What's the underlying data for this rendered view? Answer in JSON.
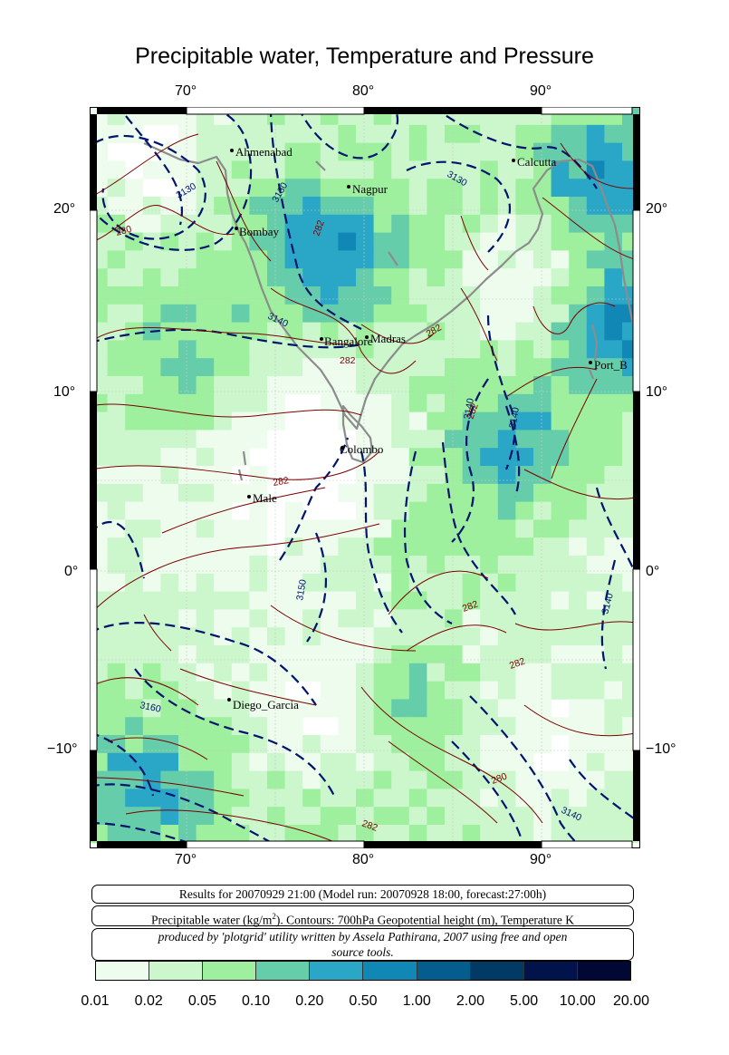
{
  "title": "Precipitable water, Temperature and Pressure",
  "lon_ticks": [
    "70°",
    "80°",
    "90°"
  ],
  "lat_ticks": [
    "20°",
    "10°",
    "0°",
    "−10°"
  ],
  "cities": [
    {
      "name": "Ahmenabad"
    },
    {
      "name": "Calcutta"
    },
    {
      "name": "Nagpur"
    },
    {
      "name": "Bombay"
    },
    {
      "name": "Madras"
    },
    {
      "name": "Bangalore"
    },
    {
      "name": "Port_B"
    },
    {
      "name": "Colombo"
    },
    {
      "name": "Male"
    },
    {
      "name": "Diego_Garcia"
    }
  ],
  "contour_labels": {
    "height": [
      "3130",
      "3130",
      "3130",
      "3140",
      "3140",
      "3140",
      "3150",
      "3160",
      "3140",
      "3140"
    ],
    "temperature": [
      "280",
      "282",
      "282",
      "282",
      "282",
      "282",
      "282",
      "282",
      "280",
      "282"
    ]
  },
  "info": {
    "line1": "Results for 20070929 21:00 (Model run: 20070928 18:00, forecast:27:00h)",
    "line2_pre": "Precipitable water (kg/m",
    "line2_sup": "2",
    "line2_post": ").  Contours: 700hPa Geopotential height (m), Temperature K",
    "line3": "produced by 'plotgrid' utility written by Assela Pathirana, 2007 using free and open source tools."
  },
  "legend": {
    "labels": [
      "0.01",
      "0.02",
      "0.05",
      "0.10",
      "0.20",
      "0.50",
      "1.00",
      "2.00",
      "5.00",
      "10.00",
      "20.00"
    ],
    "colors": [
      "#eefcee",
      "#ccf7cc",
      "#9ef09e",
      "#66cdaa",
      "#2aa7c6",
      "#1187b5",
      "#045d8c",
      "#023a66",
      "#01134a",
      "#000833"
    ]
  }
}
